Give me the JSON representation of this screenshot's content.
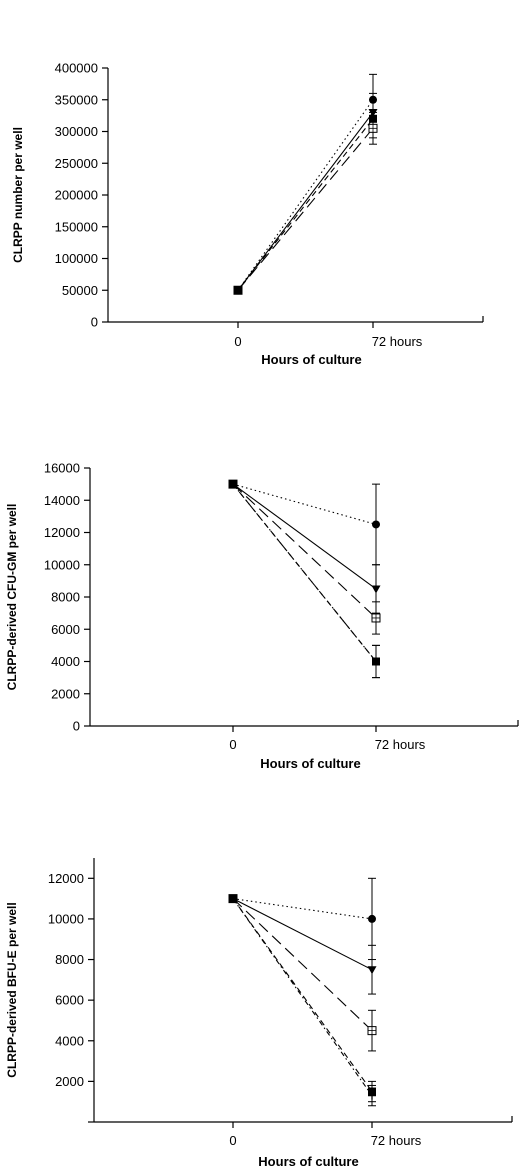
{
  "chart_data": [
    {
      "type": "line",
      "xlabel": "Hours  of  culture",
      "ylabel": "CLRPP number per well",
      "categories": [
        "0",
        "72 hours"
      ],
      "ylim": [
        0,
        400000
      ],
      "yticks": [
        "0",
        "50000",
        "100000",
        "150000",
        "200000",
        "250000",
        "300000",
        "350000",
        "400000"
      ],
      "series": [
        {
          "marker": "filled-circle",
          "dash": "dotted",
          "values": [
            50000,
            350000
          ],
          "err": [
            0,
            40000
          ]
        },
        {
          "marker": "filled-triangle",
          "dash": "solid",
          "values": [
            50000,
            330000
          ],
          "err": [
            0,
            30000
          ]
        },
        {
          "marker": "open-square",
          "dash": "long-dash",
          "values": [
            50000,
            305000
          ],
          "err": [
            0,
            25000
          ]
        },
        {
          "marker": "filled-square",
          "dash": "short-dash",
          "values": [
            50000,
            320000
          ],
          "err": [
            0,
            30000
          ]
        }
      ]
    },
    {
      "type": "line",
      "xlabel": "Hours  of  culture",
      "ylabel": "CLRPP-derived CFU-GM per well",
      "categories": [
        "0",
        "72 hours"
      ],
      "ylim": [
        0,
        16000
      ],
      "yticks": [
        "0",
        "2000",
        "4000",
        "6000",
        "8000",
        "10000",
        "12000",
        "14000",
        "16000"
      ],
      "series": [
        {
          "marker": "filled-circle",
          "dash": "dotted",
          "values": [
            15000,
            12500
          ],
          "err": [
            0,
            2500
          ]
        },
        {
          "marker": "filled-triangle",
          "dash": "solid",
          "values": [
            15000,
            8500
          ],
          "err": [
            0,
            1500
          ]
        },
        {
          "marker": "open-square",
          "dash": "long-dash",
          "values": [
            15000,
            6700
          ],
          "err": [
            0,
            1000
          ]
        },
        {
          "marker": "filled-square",
          "dash": "short-dash",
          "values": [
            15000,
            4000
          ],
          "err": [
            0,
            1000
          ]
        },
        {
          "marker": "plus",
          "dash": "dash-dot",
          "values": [
            15000,
            4000
          ],
          "err": [
            0,
            1000
          ]
        }
      ]
    },
    {
      "type": "line",
      "xlabel": "Hours  of  culture",
      "ylabel": "CLRPP-derived BFU-E per well",
      "categories": [
        "0",
        "72 hours"
      ],
      "ylim": [
        0,
        13000
      ],
      "yticks": [
        "",
        "2000",
        "4000",
        "6000",
        "8000",
        "10000",
        "12000"
      ],
      "series": [
        {
          "marker": "filled-circle",
          "dash": "dotted",
          "values": [
            11000,
            10000
          ],
          "err": [
            0,
            2000
          ]
        },
        {
          "marker": "filled-triangle",
          "dash": "solid",
          "values": [
            11000,
            7500
          ],
          "err": [
            0,
            1200
          ]
        },
        {
          "marker": "open-square",
          "dash": "long-dash",
          "values": [
            11000,
            4500
          ],
          "err": [
            0,
            1000
          ]
        },
        {
          "marker": "filled-square",
          "dash": "short-dash",
          "values": [
            11000,
            1500
          ],
          "err": [
            0,
            500
          ]
        },
        {
          "marker": "plus",
          "dash": "dash-dot",
          "values": [
            11000,
            1300
          ],
          "err": [
            0,
            500
          ]
        }
      ]
    }
  ]
}
